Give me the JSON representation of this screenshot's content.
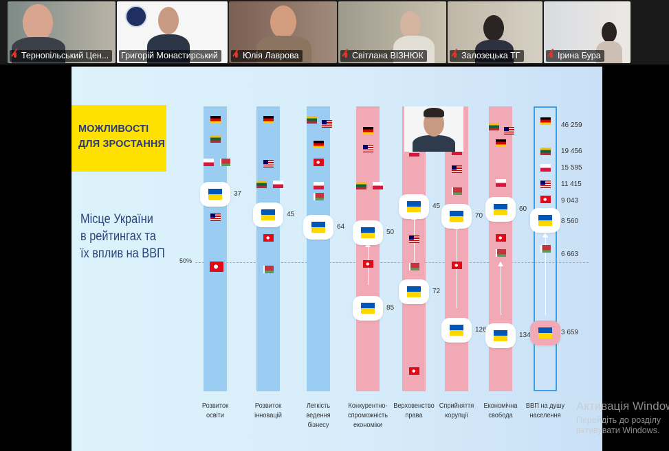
{
  "participants": [
    {
      "name": "Тернопільський Цен...",
      "muted": true
    },
    {
      "name": "Григорій Монастирський",
      "muted": false
    },
    {
      "name": "Юлія Лаврова",
      "muted": true
    },
    {
      "name": "Світлана ВІЗНЮК",
      "muted": true
    },
    {
      "name": "Залозецька ТГ",
      "muted": true
    },
    {
      "name": "Ірина Бура",
      "muted": true
    }
  ],
  "slide": {
    "title": [
      "МОЖЛИВОСТІ",
      "ДЛЯ ЗРОСТАННЯ"
    ],
    "subtitle": [
      "Місце України",
      "в рейтингах та",
      "їх вплив на ВВП"
    ],
    "fifty_label": "50%",
    "columns": [
      {
        "label": [
          "Розвиток",
          "освіти"
        ],
        "ukraine_rank": "37"
      },
      {
        "label": [
          "Розвиток",
          "інновацій"
        ],
        "ukraine_rank": "45"
      },
      {
        "label": [
          "Легкість",
          "ведення",
          "бізнесу"
        ],
        "ukraine_rank": "64"
      },
      {
        "label": [
          "Конкурентно-",
          "спроможність",
          "економіки"
        ],
        "ukraine_rank": "50",
        "ukraine_rank_from": "85"
      },
      {
        "label": [
          "Верховенство",
          "права"
        ],
        "ukraine_rank": "45",
        "ukraine_rank_from": "72"
      },
      {
        "label": [
          "Сприйняття",
          "корупції"
        ],
        "ukraine_rank": "70",
        "ukraine_rank_from": "126"
      },
      {
        "label": [
          "Економічна",
          "свобода"
        ],
        "ukraine_rank": "60",
        "ukraine_rank_from": "134"
      },
      {
        "label": [
          "ВВП на душу",
          "населення"
        ]
      }
    ],
    "gdp_values": [
      "46 259",
      "19 456",
      "15 595",
      "11 415",
      "9 043",
      "8 560",
      "6 663",
      "3 659"
    ]
  },
  "watermark": {
    "line1": "Активація Windows",
    "line2": "Перейдіть до розділу",
    "line3": "активувати Windows."
  },
  "colors": {
    "title_bg": "#ffe100",
    "title_text": "#2b3a7a",
    "active_border": "#2ad17a",
    "blue_col": "#9bcdf2",
    "pink_col": "#f2a9b6"
  }
}
